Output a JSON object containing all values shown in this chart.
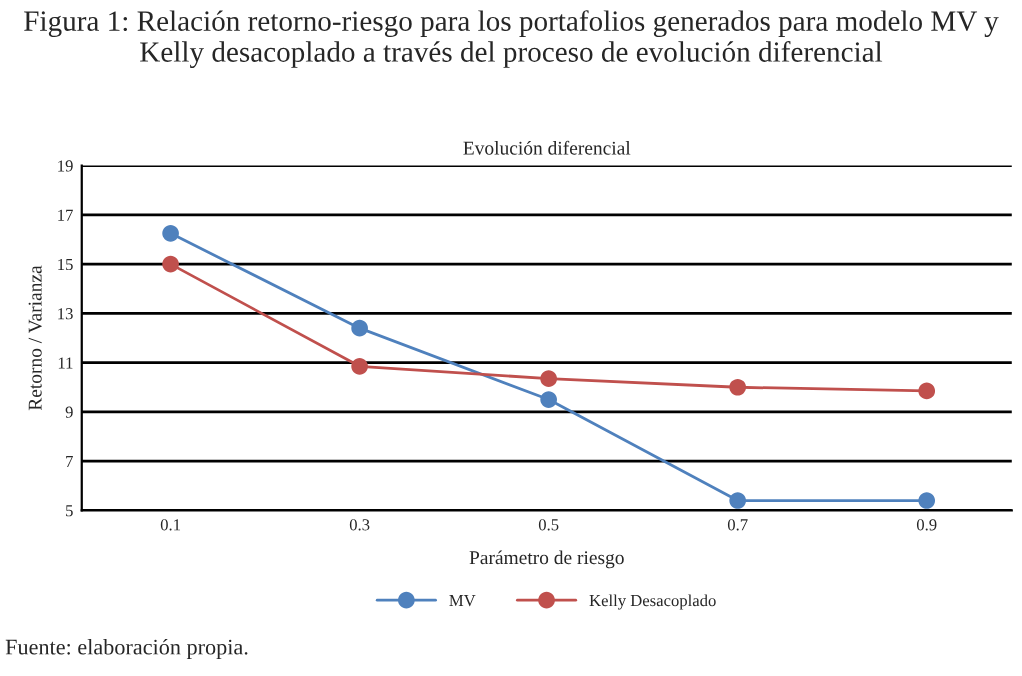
{
  "chart_data": {
    "type": "line",
    "title": "Figura 1: Relación retorno-riesgo para los portafolios generados para modelo MV y Kelly desacoplado a través del proceso de evolución diferencial",
    "subtitle": "Evolución diferencial",
    "xlabel": "Parámetro de riesgo",
    "ylabel": "Retorno / Varianza",
    "categories": [
      "0.1",
      "0.3",
      "0.5",
      "0.7",
      "0.9"
    ],
    "series": [
      {
        "name": "MV",
        "color": "#4f81bd",
        "values": [
          16.25,
          12.4,
          9.5,
          5.4,
          5.4
        ]
      },
      {
        "name": "Kelly Desacoplado",
        "color": "#c0504d",
        "values": [
          15.0,
          10.85,
          10.35,
          10.0,
          9.85
        ]
      }
    ],
    "ylim": [
      5,
      19
    ],
    "yticks": [
      5,
      7,
      9,
      11,
      13,
      15,
      17,
      19
    ],
    "grid": "y",
    "legend": "bottom",
    "marker": "circle",
    "line_style": "solid",
    "annotations": [
      "Fuente: elaboración propia."
    ]
  }
}
